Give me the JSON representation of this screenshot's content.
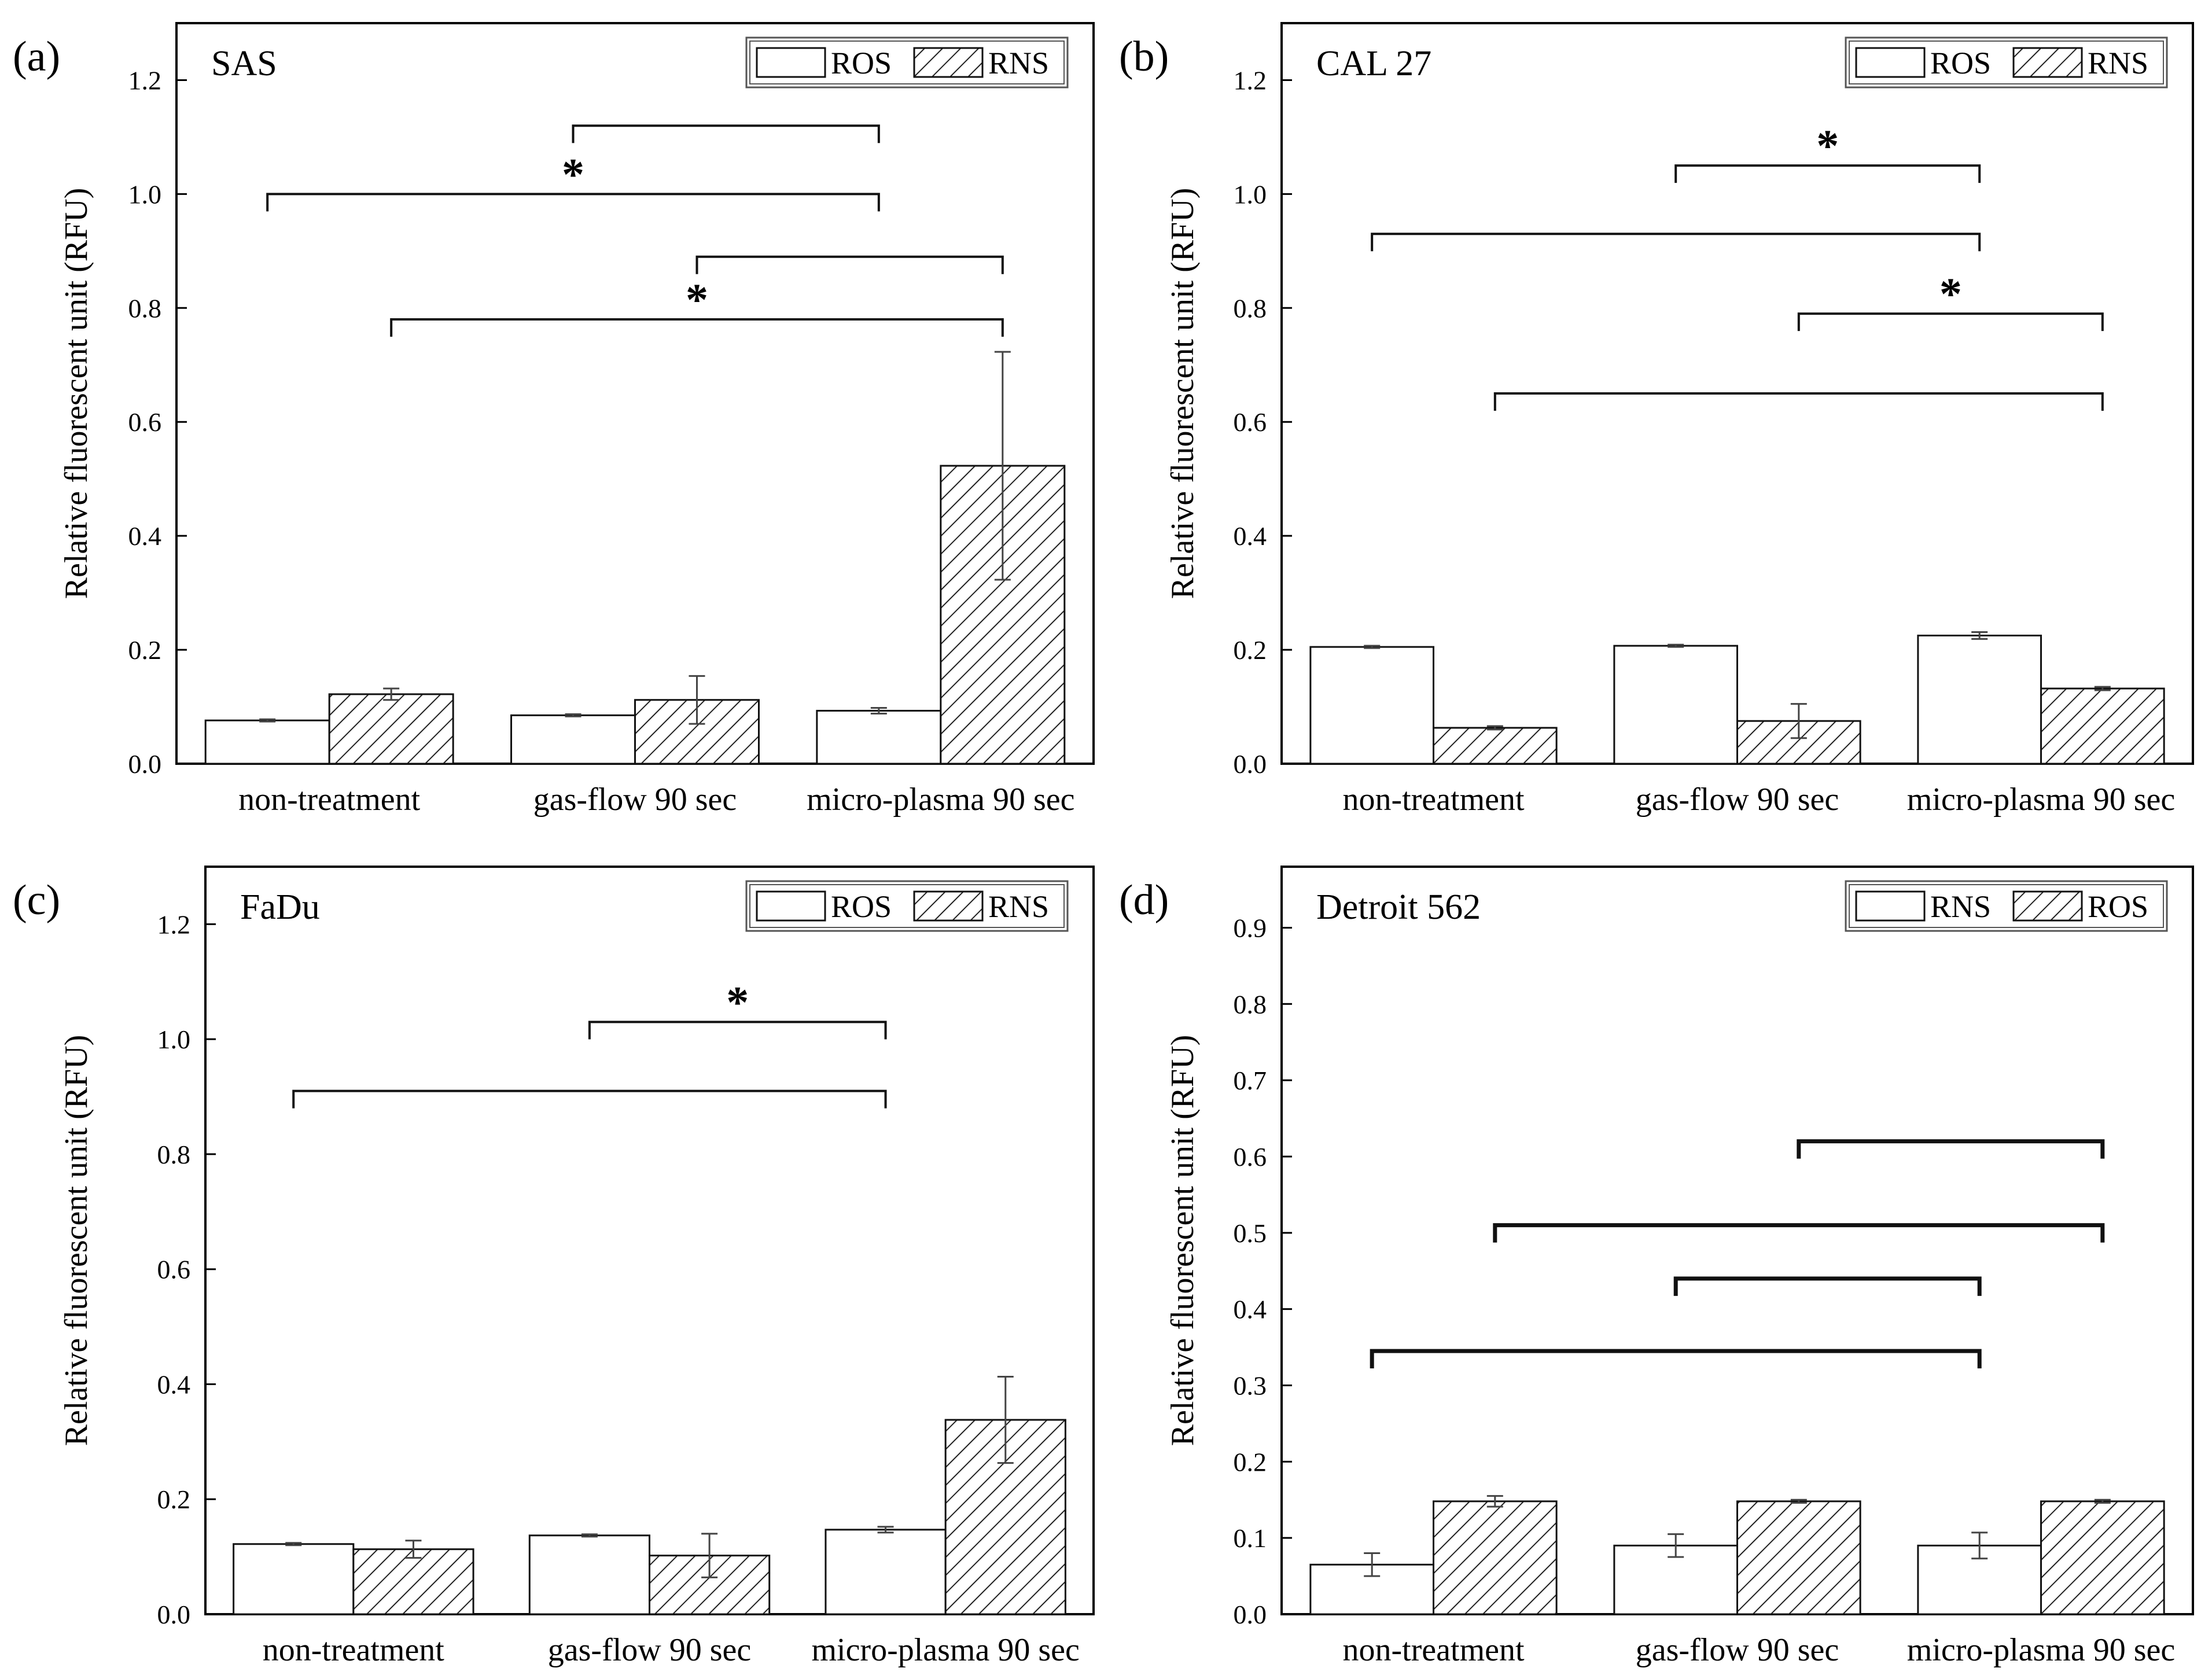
{
  "chart_data": [
    {
      "panel": "(a)",
      "title": "SAS",
      "type": "bar",
      "ylabel": "Relative fluorescent unit (RFU)",
      "ylim": [
        0,
        1.3
      ],
      "yticks": [
        "0.0",
        "0.2",
        "0.4",
        "0.6",
        "0.8",
        "1.0",
        "1.2"
      ],
      "categories": [
        "non-treatment",
        "gas-flow 90 sec",
        "micro-plasma 90 sec"
      ],
      "legend": [
        "ROS",
        "RNS"
      ],
      "series": [
        {
          "name": "ROS",
          "pattern": "open",
          "values": [
            0.076,
            0.085,
            0.093
          ],
          "errors": [
            0.002,
            0.002,
            0.005
          ]
        },
        {
          "name": "RNS",
          "pattern": "hatched",
          "values": [
            0.122,
            0.112,
            0.523
          ],
          "errors": [
            0.01,
            0.042,
            0.2
          ]
        }
      ],
      "brackets": [
        {
          "from": "gas-flow 90 sec ROS",
          "to": "micro-plasma 90 sec ROS",
          "y": 1.12,
          "label": ""
        },
        {
          "from": "non-treatment ROS",
          "to": "micro-plasma 90 sec ROS",
          "y": 1.0,
          "label": "*"
        },
        {
          "from": "gas-flow 90 sec RNS",
          "to": "micro-plasma 90 sec RNS",
          "y": 0.89,
          "label": ""
        },
        {
          "from": "non-treatment RNS",
          "to": "micro-plasma 90 sec RNS",
          "y": 0.78,
          "label": "*"
        }
      ]
    },
    {
      "panel": "(b)",
      "title": "CAL 27",
      "type": "bar",
      "ylabel": "Relative fluorescent unit (RFU)",
      "ylim": [
        0,
        1.3
      ],
      "yticks": [
        "0.0",
        "0.2",
        "0.4",
        "0.6",
        "0.8",
        "1.0",
        "1.2"
      ],
      "categories": [
        "non-treatment",
        "gas-flow 90 sec",
        "micro-plasma 90 sec"
      ],
      "legend": [
        "ROS",
        "RNS"
      ],
      "series": [
        {
          "name": "ROS",
          "pattern": "open",
          "values": [
            0.205,
            0.207,
            0.225
          ],
          "errors": [
            0.002,
            0.002,
            0.006
          ]
        },
        {
          "name": "RNS",
          "pattern": "hatched",
          "values": [
            0.063,
            0.075,
            0.132
          ],
          "errors": [
            0.003,
            0.03,
            0.003
          ]
        }
      ],
      "brackets": [
        {
          "from": "gas-flow 90 sec ROS",
          "to": "micro-plasma 90 sec ROS",
          "y": 1.05,
          "label": "*"
        },
        {
          "from": "non-treatment ROS",
          "to": "micro-plasma 90 sec ROS",
          "y": 0.93,
          "label": ""
        },
        {
          "from": "gas-flow 90 sec RNS",
          "to": "micro-plasma 90 sec RNS",
          "y": 0.79,
          "label": "*"
        },
        {
          "from": "non-treatment RNS",
          "to": "micro-plasma 90 sec RNS",
          "y": 0.65,
          "label": ""
        }
      ]
    },
    {
      "panel": "(c)",
      "title": "FaDu",
      "type": "bar",
      "ylabel": "Relative fluorescent unit (RFU)",
      "ylim": [
        0,
        1.3
      ],
      "yticks": [
        "0.0",
        "0.2",
        "0.4",
        "0.6",
        "0.8",
        "1.0",
        "1.2"
      ],
      "categories": [
        "non-treatment",
        "gas-flow 90 sec",
        "micro-plasma 90 sec"
      ],
      "legend": [
        "ROS",
        "RNS"
      ],
      "series": [
        {
          "name": "ROS",
          "pattern": "open",
          "values": [
            0.122,
            0.137,
            0.147
          ],
          "errors": [
            0.002,
            0.002,
            0.005
          ]
        },
        {
          "name": "RNS",
          "pattern": "hatched",
          "values": [
            0.113,
            0.102,
            0.338
          ],
          "errors": [
            0.015,
            0.038,
            0.075
          ]
        }
      ],
      "brackets": [
        {
          "from": "gas-flow 90 sec ROS",
          "to": "micro-plasma 90 sec ROS",
          "y": 1.03,
          "label": "*"
        },
        {
          "from": "non-treatment ROS",
          "to": "micro-plasma 90 sec ROS",
          "y": 0.91,
          "label": ""
        }
      ]
    },
    {
      "panel": "(d)",
      "title": "Detroit 562",
      "type": "bar",
      "ylabel": "Relative fluorescent unit (RFU)",
      "ylim": [
        0,
        0.98
      ],
      "yticks": [
        "0.0",
        "0.1",
        "0.2",
        "0.3",
        "0.4",
        "0.5",
        "0.6",
        "0.7",
        "0.8",
        "0.9"
      ],
      "categories": [
        "non-treatment",
        "gas-flow 90 sec",
        "micro-plasma 90 sec"
      ],
      "legend": [
        "RNS",
        "ROS"
      ],
      "series": [
        {
          "name": "RNS",
          "pattern": "open",
          "values": [
            0.065,
            0.09,
            0.09
          ],
          "errors": [
            0.015,
            0.015,
            0.017
          ]
        },
        {
          "name": "ROS",
          "pattern": "hatched",
          "values": [
            0.148,
            0.148,
            0.148
          ],
          "errors": [
            0.007,
            0.002,
            0.002
          ]
        }
      ],
      "brackets": [
        {
          "from": "gas-flow 90 sec ROS",
          "to": "micro-plasma 90 sec ROS",
          "y": 0.62,
          "label": ""
        },
        {
          "from": "non-treatment ROS",
          "to": "micro-plasma 90 sec ROS",
          "y": 0.51,
          "label": ""
        },
        {
          "from": "gas-flow 90 sec RNS",
          "to": "micro-plasma 90 sec RNS",
          "y": 0.44,
          "label": ""
        },
        {
          "from": "non-treatment RNS",
          "to": "micro-plasma 90 sec RNS",
          "y": 0.345,
          "label": ""
        }
      ]
    }
  ]
}
